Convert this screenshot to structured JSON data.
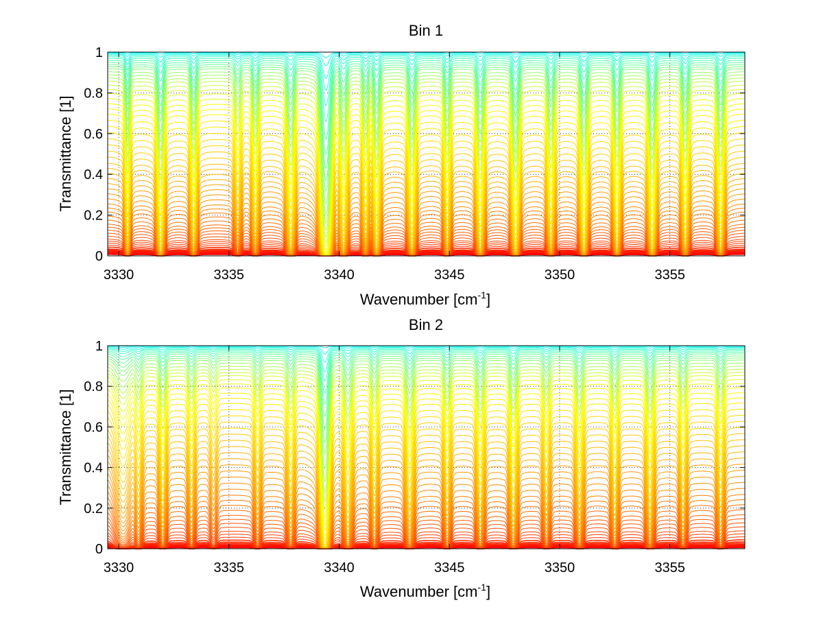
{
  "chart_data": [
    {
      "type": "line",
      "title": "Bin 1",
      "xlabel": "Wavenumber [cm",
      "xlabel_sup": "-1",
      "xlabel_close": "]",
      "ylabel": "Transmittance [1]",
      "xlim": [
        3329.5,
        3358.4
      ],
      "ylim": [
        0,
        1
      ],
      "xticks": [
        "3330",
        "3335",
        "3340",
        "3345",
        "3350",
        "3355"
      ],
      "yticks": [
        "0",
        "0.2",
        "0.4",
        "0.6",
        "0.8",
        "1"
      ],
      "grid": true,
      "colormap": [
        "#ff0000",
        "#ff7f00",
        "#ffff00",
        "#00ffff"
      ],
      "absorption_lines": [
        {
          "x": 3330.4,
          "depth": 3.0,
          "width": 0.1
        },
        {
          "x": 3331.9,
          "depth": 3.8,
          "width": 0.14
        },
        {
          "x": 3333.4,
          "depth": 2.6,
          "width": 0.13
        },
        {
          "x": 3335.4,
          "depth": 1.2,
          "width": 0.14
        },
        {
          "x": 3336.2,
          "depth": 2.0,
          "width": 0.13
        },
        {
          "x": 3337.8,
          "depth": 2.9,
          "width": 0.16
        },
        {
          "x": 3339.4,
          "depth": 12.0,
          "width": 0.2
        },
        {
          "x": 3340.2,
          "depth": 2.6,
          "width": 0.15
        },
        {
          "x": 3341.2,
          "depth": 2.0,
          "width": 0.13
        },
        {
          "x": 3341.7,
          "depth": 3.1,
          "width": 0.14
        },
        {
          "x": 3343.3,
          "depth": 3.0,
          "width": 0.15
        },
        {
          "x": 3344.9,
          "depth": 2.4,
          "width": 0.13
        },
        {
          "x": 3346.4,
          "depth": 3.2,
          "width": 0.15
        },
        {
          "x": 3348.0,
          "depth": 3.9,
          "width": 0.15
        },
        {
          "x": 3349.6,
          "depth": 2.6,
          "width": 0.14
        },
        {
          "x": 3351.1,
          "depth": 3.5,
          "width": 0.15
        },
        {
          "x": 3352.6,
          "depth": 3.0,
          "width": 0.14
        },
        {
          "x": 3354.2,
          "depth": 3.7,
          "width": 0.15
        },
        {
          "x": 3355.7,
          "depth": 2.7,
          "width": 0.14
        },
        {
          "x": 3357.3,
          "depth": 3.0,
          "width": 0.14
        }
      ],
      "continuum_levels": [
        0.008,
        0.012,
        0.016,
        0.02,
        0.025,
        0.03,
        0.035,
        0.045,
        0.055,
        0.065,
        0.075,
        0.085,
        0.1,
        0.115,
        0.13,
        0.145,
        0.16,
        0.18,
        0.2,
        0.22,
        0.24,
        0.26,
        0.285,
        0.31,
        0.335,
        0.36,
        0.385,
        0.41,
        0.435,
        0.46,
        0.49,
        0.52,
        0.55,
        0.58,
        0.61,
        0.64,
        0.67,
        0.7,
        0.725,
        0.75,
        0.775,
        0.8,
        0.82,
        0.84,
        0.86,
        0.875,
        0.89,
        0.905,
        0.92,
        0.93,
        0.94,
        0.95,
        0.96,
        0.97,
        0.978,
        0.985,
        0.99,
        0.995,
        0.998
      ]
    },
    {
      "type": "line",
      "title": "Bin 2",
      "xlabel": "Wavenumber [cm",
      "xlabel_sup": "-1",
      "xlabel_close": "]",
      "ylabel": "Transmittance [1]",
      "xlim": [
        3329.5,
        3358.4
      ],
      "ylim": [
        0,
        1
      ],
      "xticks": [
        "3330",
        "3335",
        "3340",
        "3345",
        "3350",
        "3355"
      ],
      "yticks": [
        "0",
        "0.2",
        "0.4",
        "0.6",
        "0.8",
        "1"
      ],
      "grid": true,
      "colormap": [
        "#ff0000",
        "#ff7f00",
        "#ffff00",
        "#00ffff"
      ],
      "absorption_lines": [
        {
          "x": 3330.2,
          "depth": 1.1,
          "width": 0.35
        },
        {
          "x": 3330.9,
          "depth": 1.1,
          "width": 0.16
        },
        {
          "x": 3332.0,
          "depth": 1.5,
          "width": 0.15
        },
        {
          "x": 3333.3,
          "depth": 1.1,
          "width": 0.15
        },
        {
          "x": 3334.3,
          "depth": 0.6,
          "width": 0.15
        },
        {
          "x": 3336.3,
          "depth": 1.0,
          "width": 0.15
        },
        {
          "x": 3337.8,
          "depth": 1.3,
          "width": 0.16
        },
        {
          "x": 3339.35,
          "depth": 9.0,
          "width": 0.18
        },
        {
          "x": 3340.4,
          "depth": 1.9,
          "width": 0.18
        },
        {
          "x": 3341.6,
          "depth": 1.3,
          "width": 0.15
        },
        {
          "x": 3343.2,
          "depth": 1.9,
          "width": 0.17
        },
        {
          "x": 3344.9,
          "depth": 1.4,
          "width": 0.15
        },
        {
          "x": 3346.4,
          "depth": 1.7,
          "width": 0.16
        },
        {
          "x": 3347.9,
          "depth": 1.9,
          "width": 0.16
        },
        {
          "x": 3349.4,
          "depth": 1.2,
          "width": 0.15
        },
        {
          "x": 3350.9,
          "depth": 1.6,
          "width": 0.16
        },
        {
          "x": 3352.5,
          "depth": 1.4,
          "width": 0.15
        },
        {
          "x": 3354.1,
          "depth": 1.8,
          "width": 0.16
        },
        {
          "x": 3355.6,
          "depth": 1.3,
          "width": 0.15
        },
        {
          "x": 3357.3,
          "depth": 1.3,
          "width": 0.15
        }
      ],
      "continuum_levels": [
        0.006,
        0.01,
        0.014,
        0.018,
        0.022,
        0.028,
        0.035,
        0.045,
        0.06,
        0.075,
        0.09,
        0.11,
        0.13,
        0.15,
        0.17,
        0.195,
        0.22,
        0.245,
        0.27,
        0.3,
        0.33,
        0.36,
        0.39,
        0.42,
        0.45,
        0.48,
        0.51,
        0.54,
        0.57,
        0.6,
        0.63,
        0.66,
        0.69,
        0.72,
        0.745,
        0.77,
        0.795,
        0.815,
        0.835,
        0.855,
        0.87,
        0.885,
        0.9,
        0.915,
        0.93,
        0.94,
        0.95,
        0.96,
        0.968,
        0.975,
        0.982,
        0.987,
        0.992,
        0.996,
        0.999
      ]
    }
  ]
}
